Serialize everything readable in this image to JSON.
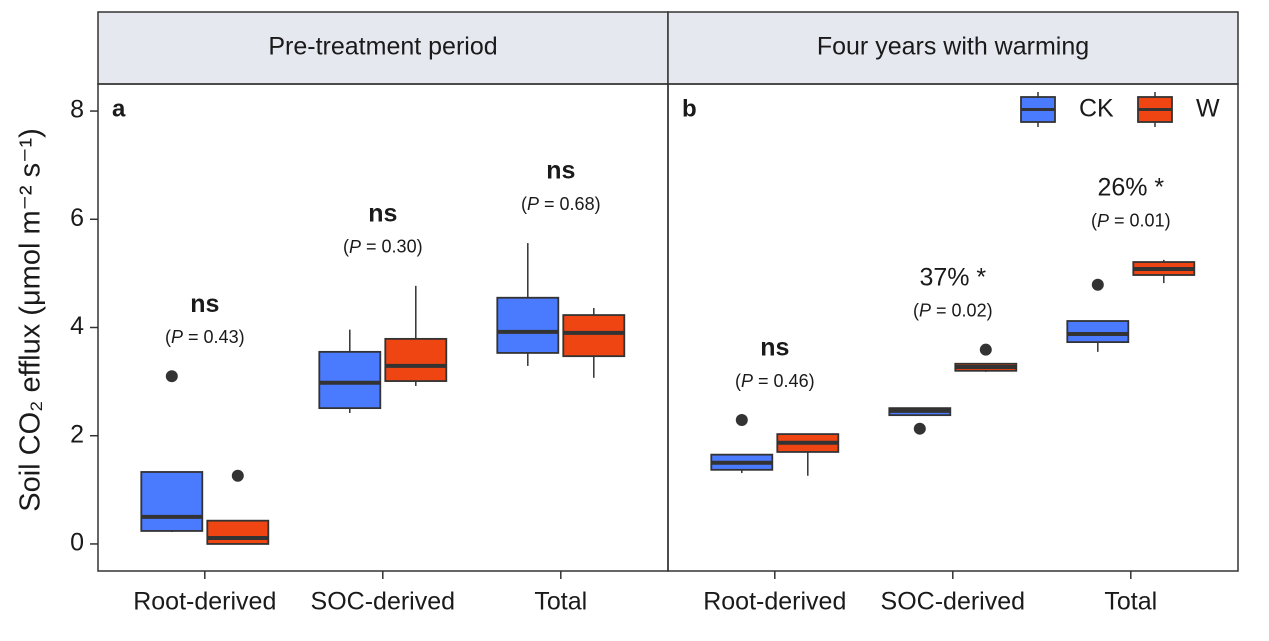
{
  "chart_data": {
    "type": "box",
    "y_label": "Soil CO₂ efflux (μmol m⁻² s⁻¹)",
    "ylim": [
      -0.5,
      8.5
    ],
    "yticks": [
      0,
      2,
      4,
      6,
      8
    ],
    "categories": [
      "Root-derived",
      "SOC-derived",
      "Total"
    ],
    "series": [
      {
        "name": "CK",
        "color": "#4a7bff"
      },
      {
        "name": "W",
        "color": "#ef4512"
      }
    ],
    "legend": "top-right",
    "facets": [
      {
        "title": "Pre-treatment period",
        "panel_label": "a",
        "series": [
          {
            "values": [
              {
                "min": 0.22,
                "q1": 0.24,
                "median": 0.5,
                "q3": 1.33,
                "max": 1.33,
                "outliers": [
                  3.1
                ]
              },
              {
                "min": 2.42,
                "q1": 2.51,
                "median": 2.98,
                "q3": 3.55,
                "max": 3.96,
                "outliers": []
              },
              {
                "min": 3.29,
                "q1": 3.53,
                "median": 3.92,
                "q3": 4.55,
                "max": 5.56,
                "outliers": []
              }
            ]
          },
          {
            "values": [
              {
                "min": 0,
                "q1": 0,
                "median": 0.11,
                "q3": 0.43,
                "max": 0.43,
                "outliers": [
                  1.26
                ]
              },
              {
                "min": 2.92,
                "q1": 3.01,
                "median": 3.29,
                "q3": 3.79,
                "max": 4.77,
                "outliers": []
              },
              {
                "min": 3.07,
                "q1": 3.47,
                "median": 3.9,
                "q3": 4.23,
                "max": 4.36,
                "outliers": []
              }
            ]
          }
        ],
        "sig_labels": [
          "ns",
          "ns",
          "ns"
        ],
        "p_labels": [
          "(P = 0.43)",
          "(P = 0.30)",
          "(P = 0.68)"
        ]
      },
      {
        "title": "Four years with warming",
        "panel_label": "b",
        "series": [
          {
            "values": [
              {
                "min": 1.31,
                "q1": 1.37,
                "median": 1.5,
                "q3": 1.65,
                "max": 1.65,
                "outliers": [
                  2.29
                ]
              },
              {
                "min": 2.38,
                "q1": 2.38,
                "median": 2.46,
                "q3": 2.51,
                "max": 2.51,
                "outliers": [
                  2.13
                ]
              },
              {
                "min": 3.55,
                "q1": 3.73,
                "median": 3.88,
                "q3": 4.12,
                "max": 4.12,
                "outliers": [
                  4.79
                ]
              }
            ]
          },
          {
            "values": [
              {
                "min": 1.26,
                "q1": 1.7,
                "median": 1.87,
                "q3": 2.03,
                "max": 2.03,
                "outliers": []
              },
              {
                "min": 3.18,
                "q1": 3.2,
                "median": 3.27,
                "q3": 3.33,
                "max": 3.33,
                "outliers": [
                  3.59
                ]
              },
              {
                "min": 4.82,
                "q1": 4.97,
                "median": 5.08,
                "q3": 5.21,
                "max": 5.25,
                "outliers": []
              }
            ]
          }
        ],
        "sig_labels": [
          "ns",
          "37% *",
          "26% *"
        ],
        "p_labels": [
          "(P = 0.46)",
          "(P = 0.02)",
          "(P = 0.01)"
        ]
      }
    ]
  }
}
